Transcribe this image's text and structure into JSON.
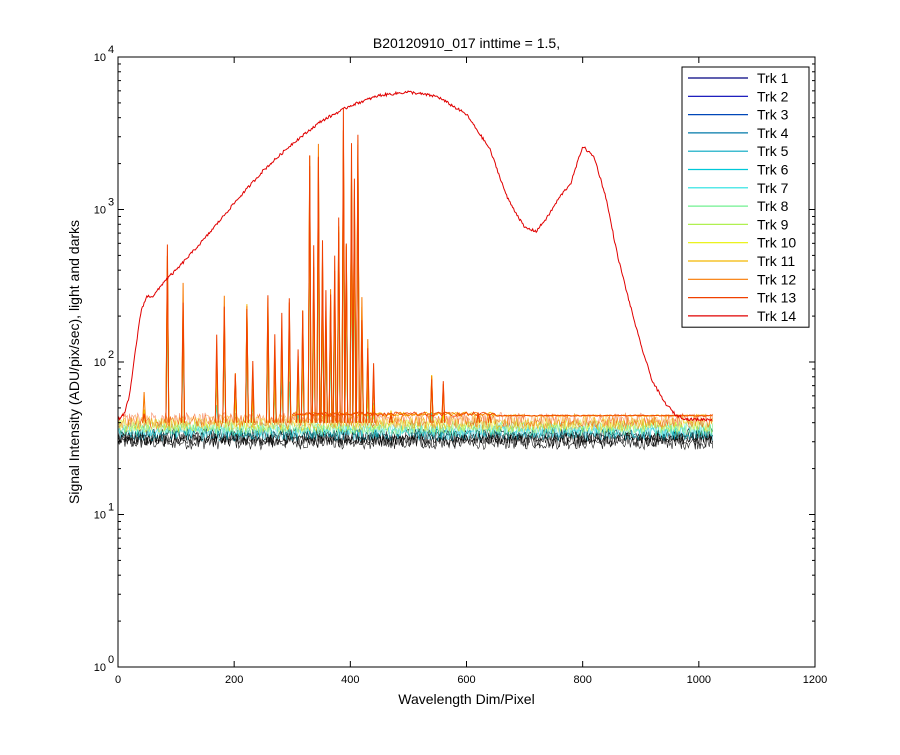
{
  "chart_data": {
    "type": "line",
    "title": "B20120910_017 inttime = 1.5,",
    "xlabel": "Wavelength Dim/Pixel",
    "ylabel": "Signal Intensity (ADU/pix/sec), light and darks",
    "xlim": [
      0,
      1200
    ],
    "ylim": [
      1,
      10000
    ],
    "yscale": "log",
    "grid": false,
    "legend_position": "top-right",
    "x_ticks": [
      "0",
      "200",
      "400",
      "600",
      "800",
      "1000",
      "1200"
    ],
    "y_ticks": [
      {
        "base": "10",
        "exp": "0"
      },
      {
        "base": "10",
        "exp": "1"
      },
      {
        "base": "10",
        "exp": "2"
      },
      {
        "base": "10",
        "exp": "3"
      },
      {
        "base": "10",
        "exp": "4"
      }
    ],
    "dark_band": {
      "x_range": [
        0,
        1024
      ],
      "y_min": 30,
      "y_max": 42
    },
    "lamp_lines": {
      "x": [
        45,
        85,
        112,
        170,
        183,
        202,
        222,
        232,
        258,
        270,
        282,
        295,
        310,
        318,
        330,
        337,
        345,
        352,
        358,
        366,
        373,
        380,
        388,
        393,
        402,
        407,
        413,
        420,
        430,
        440,
        470,
        540,
        560,
        620,
        640
      ],
      "peak": [
        75,
        720,
        400,
        160,
        320,
        140,
        320,
        130,
        340,
        180,
        220,
        300,
        160,
        260,
        3000,
        600,
        3000,
        800,
        400,
        500,
        600,
        1200,
        5500,
        800,
        3000,
        2000,
        5000,
        300,
        160,
        110,
        65,
        115,
        85,
        55,
        52
      ]
    },
    "series": [
      {
        "name": "Trk 1",
        "color": "#000080"
      },
      {
        "name": "Trk 2",
        "color": "#0000b4"
      },
      {
        "name": "Trk 3",
        "color": "#0047b8"
      },
      {
        "name": "Trk 4",
        "color": "#0078a8"
      },
      {
        "name": "Trk 5",
        "color": "#00a6c0"
      },
      {
        "name": "Trk 6",
        "color": "#00c8d8"
      },
      {
        "name": "Trk 7",
        "color": "#20e0e0"
      },
      {
        "name": "Trk 8",
        "color": "#70f090"
      },
      {
        "name": "Trk 9",
        "color": "#b0f050"
      },
      {
        "name": "Trk 10",
        "color": "#e8f000"
      },
      {
        "name": "Trk 11",
        "color": "#f4b800"
      },
      {
        "name": "Trk 12",
        "color": "#f87800"
      },
      {
        "name": "Trk 13",
        "color": "#f04000"
      },
      {
        "name": "Trk 14",
        "color": "#e00000",
        "x": [
          0,
          10,
          20,
          30,
          40,
          50,
          60,
          70,
          80,
          100,
          150,
          200,
          250,
          300,
          350,
          400,
          450,
          500,
          550,
          600,
          640,
          670,
          700,
          720,
          740,
          760,
          780,
          800,
          820,
          840,
          860,
          880,
          900,
          920,
          940,
          960,
          980,
          1000,
          1024
        ],
        "y": [
          42,
          45,
          60,
          120,
          220,
          270,
          270,
          300,
          340,
          400,
          650,
          1100,
          1800,
          2700,
          3800,
          4800,
          5600,
          5900,
          5500,
          4200,
          2500,
          1200,
          760,
          720,
          900,
          1200,
          1500,
          2600,
          2200,
          1200,
          500,
          250,
          130,
          75,
          55,
          45,
          42,
          42,
          42
        ]
      }
    ]
  }
}
